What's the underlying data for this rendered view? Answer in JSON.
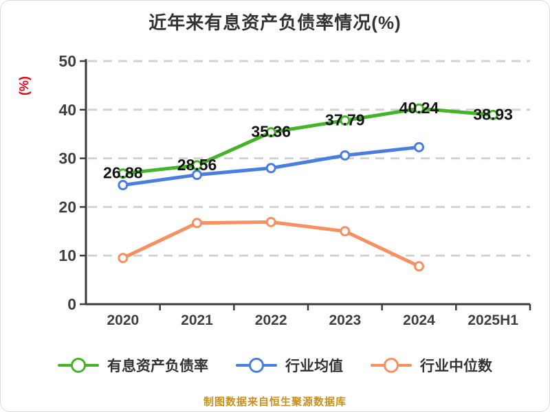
{
  "title": "近年来有息资产负债率情况(%)",
  "footer": "制图数据来自恒生聚源数据库",
  "colors": {
    "title_text": "#333333",
    "tick_text": "#3f3f3f",
    "value_label_text": "#141414",
    "axis": "#3b3b3b",
    "grid": "#d2d2d2",
    "y_axis_label": "#e60012",
    "footer_text": "#c8901a",
    "series_green": "#45b32a",
    "series_blue": "#4a7de0",
    "series_orange": "#f78f5f",
    "marker_fill": "#ffffff"
  },
  "chart_data": {
    "type": "line",
    "title": "近年来有息资产负债率情况(%)",
    "categories": [
      "2020",
      "2021",
      "2022",
      "2023",
      "2024",
      "2025H1"
    ],
    "series": [
      {
        "name": "有息资产负债率",
        "color": "#45b32a",
        "values": [
          26.88,
          28.56,
          35.36,
          37.79,
          40.24,
          38.93
        ],
        "show_labels": true,
        "labels": [
          "26.88",
          "28.56",
          "35.36",
          "37.79",
          "40.24",
          "38.93"
        ]
      },
      {
        "name": "行业均值",
        "color": "#4a7de0",
        "values": [
          24.5,
          26.6,
          28.0,
          30.6,
          32.3,
          null
        ],
        "show_labels": false
      },
      {
        "name": "行业中位数",
        "color": "#f78f5f",
        "values": [
          9.5,
          16.7,
          16.9,
          15.0,
          7.8,
          null
        ],
        "show_labels": false
      }
    ],
    "ylabel": "(%)",
    "xlabel": "",
    "ylim": [
      0,
      50
    ],
    "yticks": [
      0,
      10,
      20,
      30,
      40,
      50
    ],
    "grid": "horizontal-dashed",
    "legend_position": "bottom"
  },
  "legend": {
    "items": [
      {
        "label": "有息资产负债率",
        "color": "#45b32a"
      },
      {
        "label": "行业均值",
        "color": "#4a7de0"
      },
      {
        "label": "行业中位数",
        "color": "#f78f5f"
      }
    ]
  }
}
